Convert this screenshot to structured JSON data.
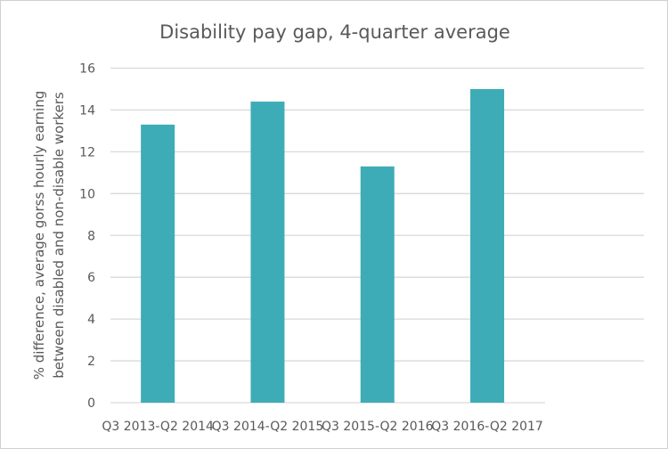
{
  "chart_data": {
    "type": "bar",
    "title": "Disability pay gap, 4-quarter average",
    "xlabel": "",
    "ylabel": [
      "% difference, average gorss hourly earning",
      "between disabled and non-disable workers"
    ],
    "categories": [
      "Q3 2013-Q2 2014",
      "Q3 2014-Q2 2015",
      "Q3 2015-Q2 2016",
      "Q3 2016-Q2 2017"
    ],
    "values": [
      13.3,
      14.4,
      11.3,
      15.0
    ],
    "ylim": [
      0,
      16
    ],
    "yticks": [
      0,
      2,
      4,
      6,
      8,
      10,
      12,
      14,
      16
    ],
    "grid": true,
    "legend": "none",
    "bar_color": "#3eacb6"
  }
}
